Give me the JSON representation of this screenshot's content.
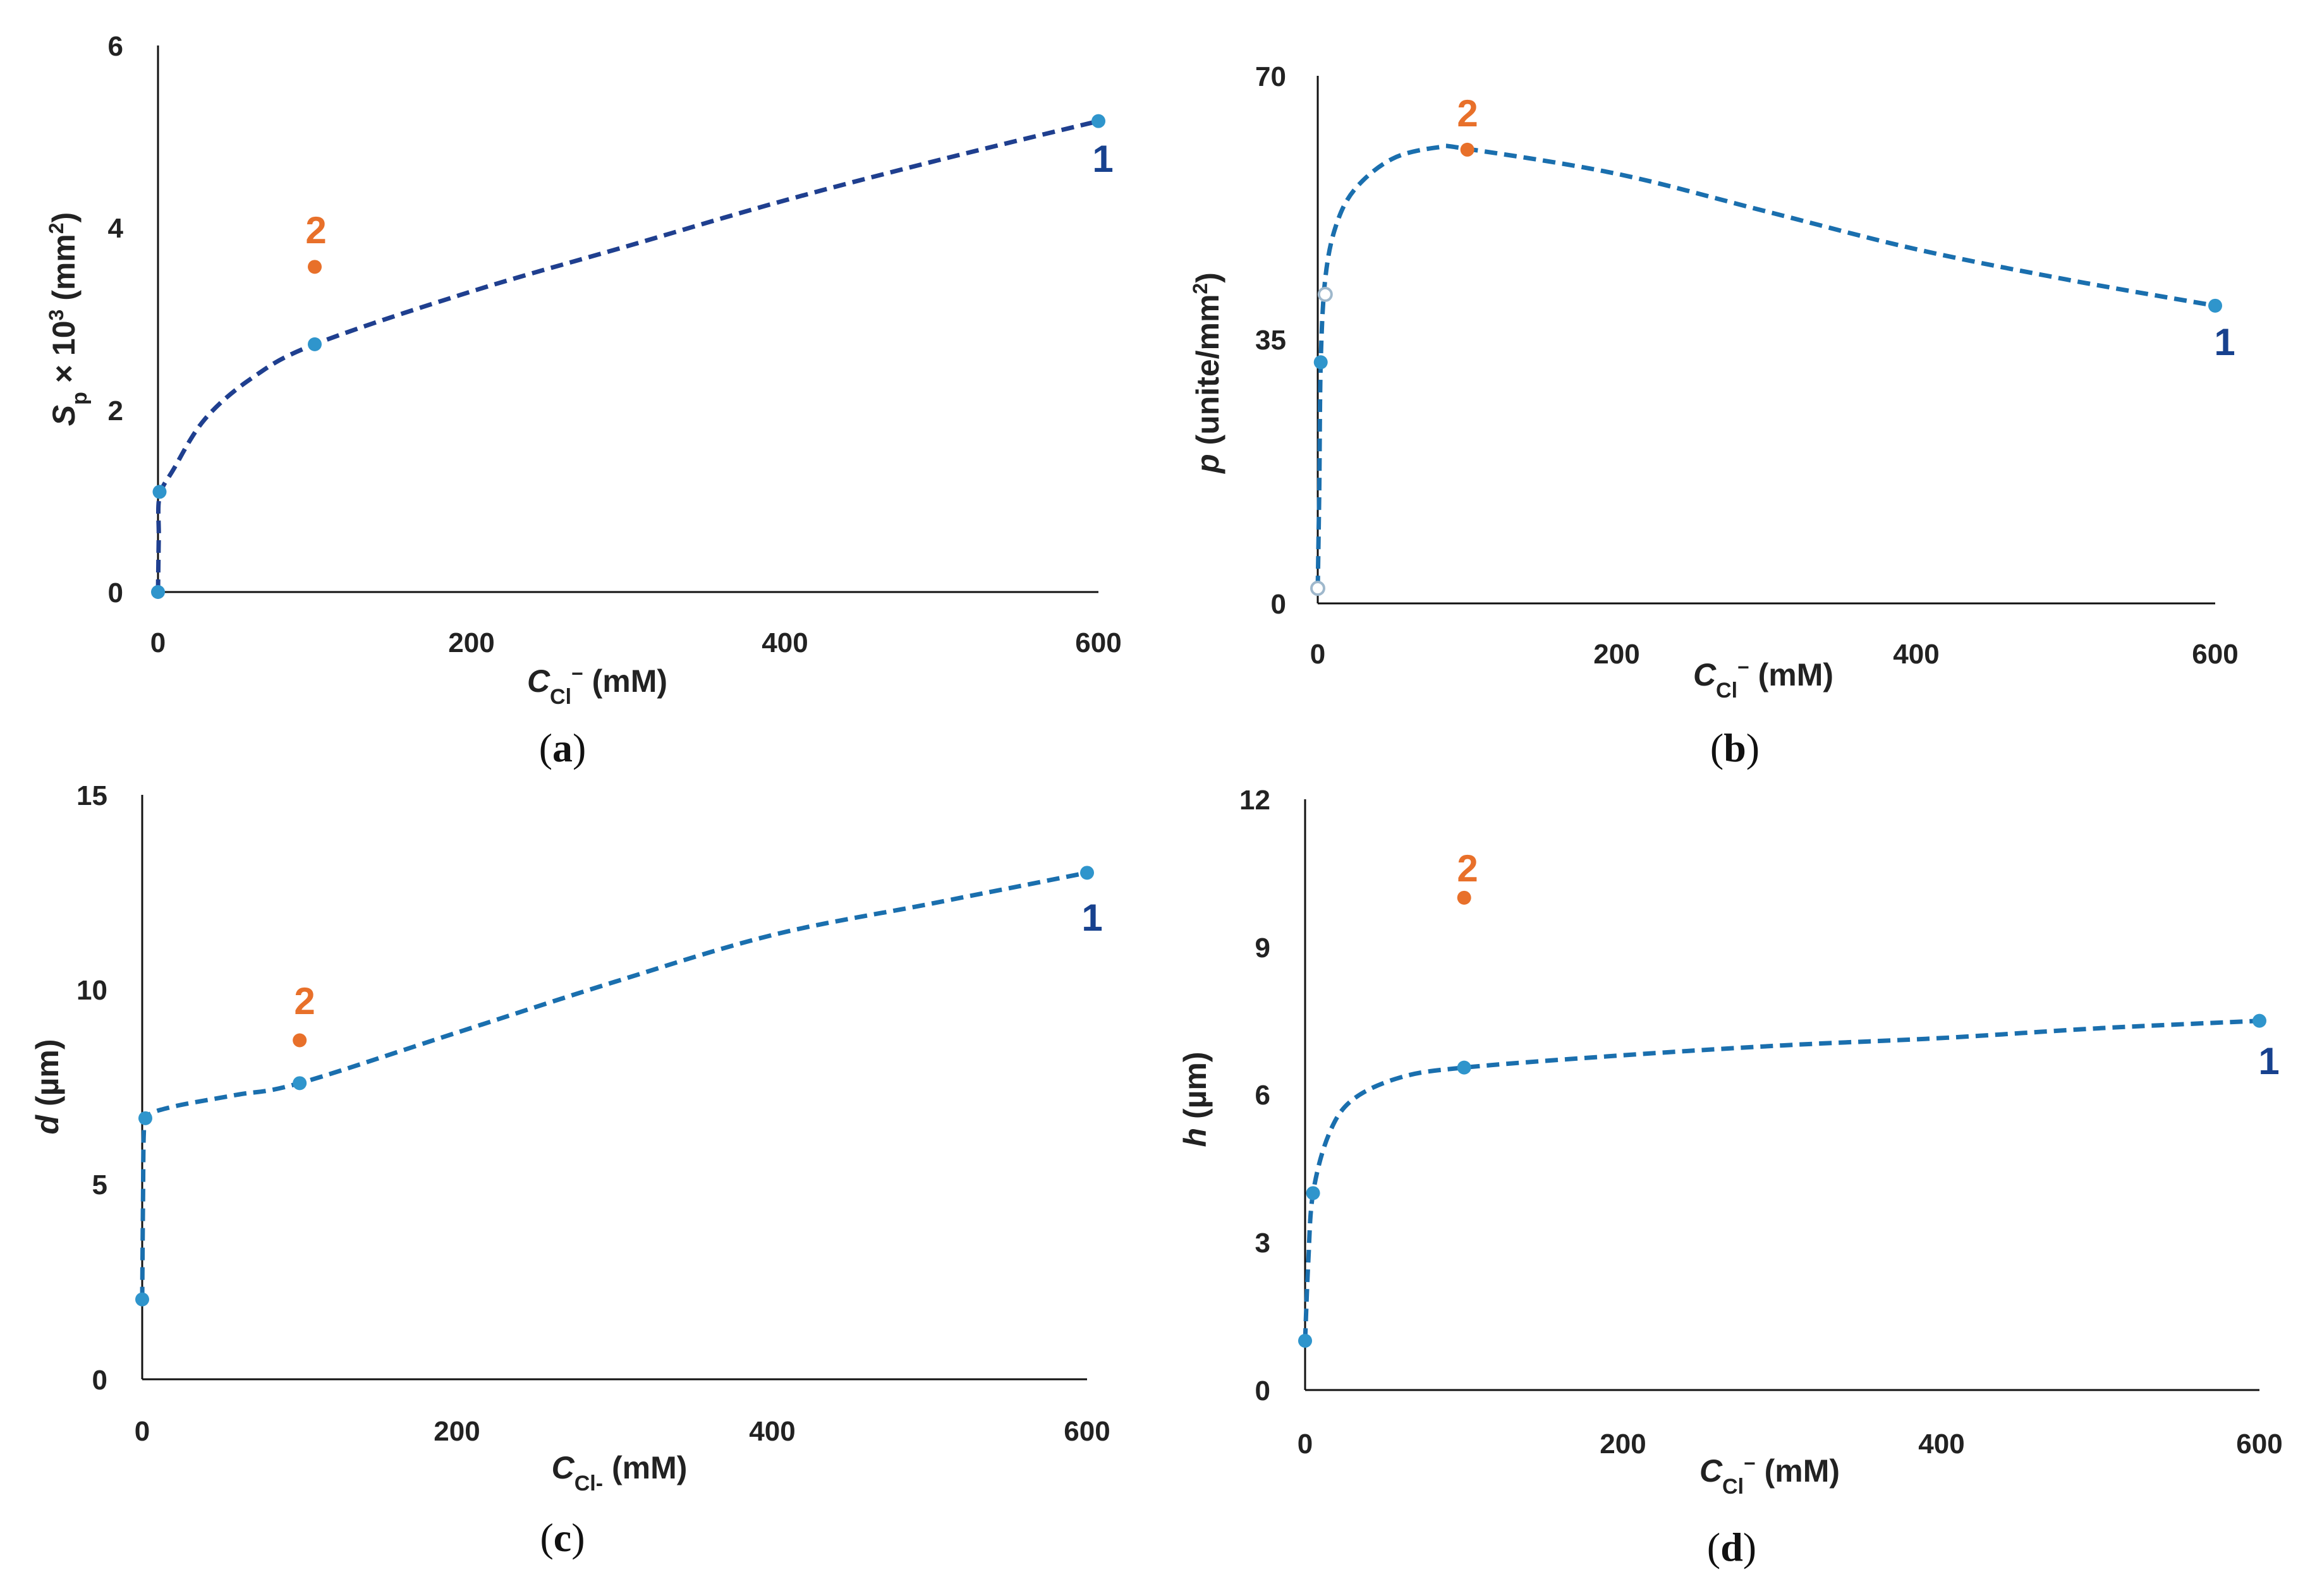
{
  "colors": {
    "curve_a": "#1f3f8f",
    "curve": "#1a6fae",
    "point_blue": "#2f95cc",
    "point_orange": "#e8702a",
    "label_blue": "#17418e",
    "label_orange": "#e8702a",
    "axis": "#111111"
  },
  "chart_data": [
    {
      "id": "a",
      "type": "scatter",
      "panel_label": "a",
      "ylabel_var": "S",
      "ylabel_sub": "p",
      "ylabel_mid": " × 10",
      "ylabel_sup": "3",
      "ylabel_unit": " (mm",
      "ylabel_unit_sup": "2",
      "ylabel_close": ")",
      "xlabel_var": "C",
      "xlabel_sub": "Cl",
      "xlabel_sup": "−",
      "xlabel_unit": " (mM)",
      "xlim": [
        0,
        600
      ],
      "ylim": [
        0,
        6
      ],
      "xticks": [
        "0",
        "200",
        "400",
        "600"
      ],
      "yticks": [
        "0",
        "2",
        "4",
        "6"
      ],
      "series_1": {
        "name": "1",
        "points": [
          [
            0,
            0
          ],
          [
            1,
            1.1
          ],
          [
            100,
            2.72
          ],
          [
            600,
            5.17
          ]
        ],
        "curve": [
          [
            0,
            0
          ],
          [
            0.5,
            0.6
          ],
          [
            1,
            1.05
          ],
          [
            10,
            1.35
          ],
          [
            30,
            1.9
          ],
          [
            60,
            2.35
          ],
          [
            100,
            2.72
          ],
          [
            200,
            3.3
          ],
          [
            300,
            3.8
          ],
          [
            400,
            4.3
          ],
          [
            500,
            4.75
          ],
          [
            600,
            5.17
          ]
        ]
      },
      "series_2": {
        "name": "2",
        "points": [
          [
            100,
            3.57
          ]
        ]
      },
      "label_1": "1",
      "label_2": "2"
    },
    {
      "id": "b",
      "type": "scatter",
      "panel_label": "b",
      "ylabel_var": "p",
      "ylabel_unit": " (unite/mm",
      "ylabel_unit_sup": "2",
      "ylabel_close": ")",
      "xlabel_var": "C",
      "xlabel_sub": "Cl",
      "xlabel_sup": "−",
      "xlabel_unit": " (mM)",
      "xlim": [
        0,
        600
      ],
      "ylim": [
        0,
        70
      ],
      "xticks": [
        "0",
        "200",
        "400",
        "600"
      ],
      "yticks": [
        "0",
        "35",
        "70"
      ],
      "series_1": {
        "name": "1",
        "points": [
          [
            0,
            2
          ],
          [
            2,
            32
          ],
          [
            600,
            39.5
          ]
        ],
        "hollow_points": [
          [
            5,
            41
          ]
        ],
        "curve": [
          [
            0,
            2
          ],
          [
            1,
            15
          ],
          [
            2,
            32
          ],
          [
            5,
            43
          ],
          [
            12,
            50
          ],
          [
            25,
            55
          ],
          [
            50,
            59
          ],
          [
            80,
            60.5
          ],
          [
            100,
            60.3
          ],
          [
            200,
            57
          ],
          [
            300,
            52
          ],
          [
            400,
            47
          ],
          [
            500,
            43
          ],
          [
            600,
            39.5
          ]
        ]
      },
      "series_2": {
        "name": "2",
        "points": [
          [
            100,
            60.2
          ]
        ]
      },
      "label_1": "1",
      "label_2": "2"
    },
    {
      "id": "c",
      "type": "scatter",
      "panel_label": "c",
      "ylabel_var": "d",
      "ylabel_unit": " (µm)",
      "xlabel_var": "C",
      "xlabel_sub": "Cl-",
      "xlabel_unit": " (mM)",
      "xlim": [
        0,
        600
      ],
      "ylim": [
        0,
        15
      ],
      "xticks": [
        "0",
        "200",
        "400",
        "600"
      ],
      "yticks": [
        "0",
        "5",
        "10",
        "15"
      ],
      "series_1": {
        "name": "1",
        "points": [
          [
            0,
            2.05
          ],
          [
            2,
            6.7
          ],
          [
            100,
            7.6
          ],
          [
            600,
            13
          ]
        ],
        "curve": [
          [
            0,
            2.05
          ],
          [
            0.5,
            4.5
          ],
          [
            1,
            6.3
          ],
          [
            3,
            6.75
          ],
          [
            20,
            7.0
          ],
          [
            60,
            7.3
          ],
          [
            100,
            7.6
          ],
          [
            200,
            8.9
          ],
          [
            300,
            10.2
          ],
          [
            400,
            11.4
          ],
          [
            500,
            12.2
          ],
          [
            600,
            13
          ]
        ]
      },
      "series_2": {
        "name": "2",
        "points": [
          [
            100,
            8.7
          ]
        ]
      },
      "label_1": "1",
      "label_2": "2"
    },
    {
      "id": "d",
      "type": "scatter",
      "panel_label": "d",
      "ylabel_var": "h",
      "ylabel_unit": " (µm)",
      "xlabel_var": "C",
      "xlabel_sub": "Cl",
      "xlabel_sup": "−",
      "xlabel_unit": " (mM)",
      "xlim": [
        0,
        600
      ],
      "ylim": [
        0,
        12
      ],
      "xticks": [
        "0",
        "200",
        "400",
        "600"
      ],
      "yticks": [
        "0",
        "3",
        "6",
        "9",
        "12"
      ],
      "series_1": {
        "name": "1",
        "points": [
          [
            0,
            1
          ],
          [
            5,
            4
          ],
          [
            100,
            6.55
          ],
          [
            600,
            7.5
          ]
        ],
        "curve": [
          [
            0,
            1
          ],
          [
            2,
            2.6
          ],
          [
            5,
            4.0
          ],
          [
            15,
            5.2
          ],
          [
            30,
            5.9
          ],
          [
            60,
            6.35
          ],
          [
            100,
            6.55
          ],
          [
            200,
            6.8
          ],
          [
            300,
            7.0
          ],
          [
            400,
            7.15
          ],
          [
            500,
            7.35
          ],
          [
            600,
            7.5
          ]
        ]
      },
      "series_2": {
        "name": "2",
        "points": [
          [
            100,
            10
          ]
        ]
      },
      "label_1": "1",
      "label_2": "2"
    }
  ]
}
